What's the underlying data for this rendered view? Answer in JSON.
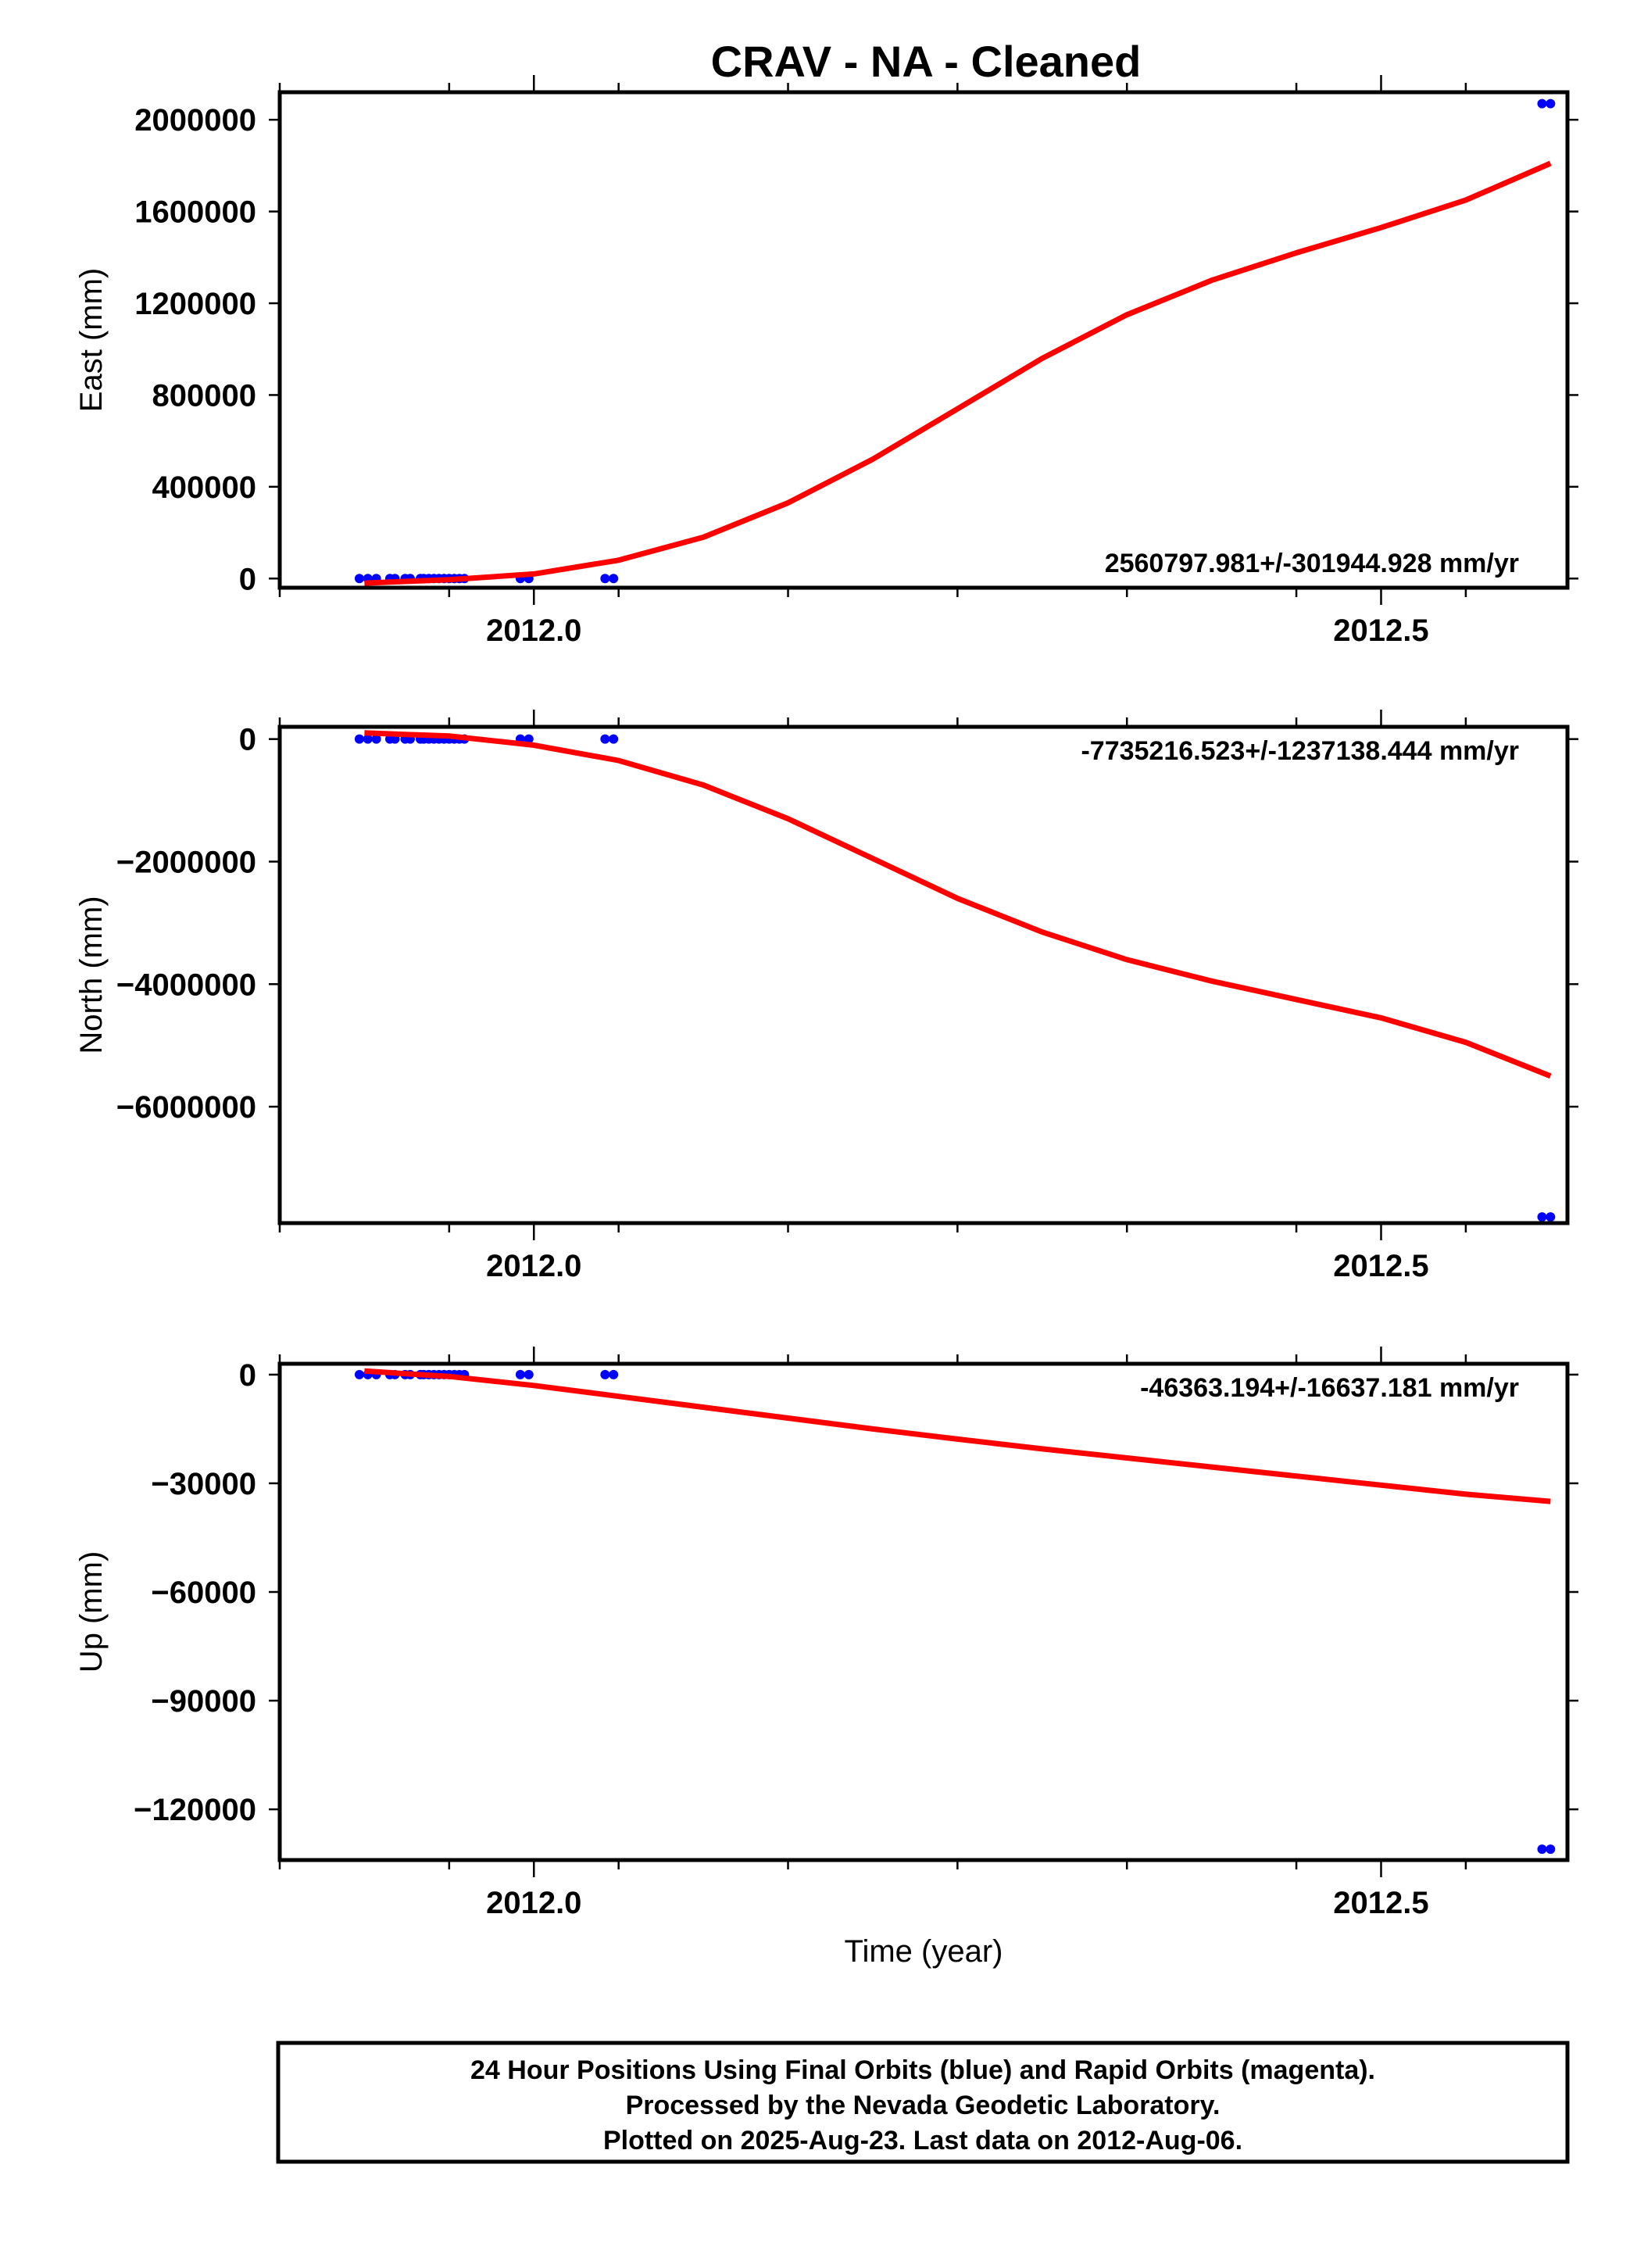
{
  "chart_data": [
    {
      "type": "line",
      "title": "CRAV  - NA - Cleaned",
      "ylabel": "East (mm)",
      "xlabel": "",
      "xlim": [
        2011.85,
        2012.61
      ],
      "ylim": [
        -40000,
        2120000
      ],
      "x_ticks": [
        2012.0,
        2012.5
      ],
      "x_tick_labels": [
        "2012.0",
        "2012.5"
      ],
      "y_ticks": [
        0,
        400000,
        800000,
        1200000,
        1600000,
        2000000
      ],
      "y_tick_labels": [
        "0",
        "400000",
        "800000",
        "1200000",
        "1600000",
        "2000000"
      ],
      "rate_label": "2560797.981+/-301944.928 mm/yr",
      "series": [
        {
          "color": "#0000ff",
          "style": "points",
          "x": [
            2011.897,
            2011.902,
            2011.907,
            2011.915,
            2011.918,
            2011.924,
            2011.927,
            2011.933,
            2011.935,
            2011.938,
            2011.941,
            2011.944,
            2011.947,
            2011.95,
            2011.953,
            2011.956,
            2011.959,
            2011.992,
            2011.997,
            2012.042,
            2012.047,
            2012.595,
            2012.6
          ],
          "y": [
            0,
            0,
            0,
            0,
            0,
            0,
            0,
            0,
            0,
            0,
            0,
            0,
            0,
            0,
            0,
            0,
            0,
            0,
            0,
            0,
            0,
            2070000,
            2070000
          ]
        },
        {
          "color": "#ff0000",
          "style": "line",
          "x": [
            2011.9,
            2011.95,
            2012.0,
            2012.05,
            2012.1,
            2012.15,
            2012.2,
            2012.25,
            2012.3,
            2012.35,
            2012.4,
            2012.45,
            2012.5,
            2012.55,
            2012.6
          ],
          "y": [
            -20000,
            -5000,
            20000,
            80000,
            180000,
            330000,
            520000,
            740000,
            960000,
            1150000,
            1300000,
            1420000,
            1530000,
            1650000,
            1810000
          ]
        }
      ]
    },
    {
      "type": "line",
      "title": "",
      "ylabel": "North (mm)",
      "xlabel": "",
      "xlim": [
        2011.85,
        2012.61
      ],
      "ylim": [
        -7900000,
        200000
      ],
      "x_ticks": [
        2012.0,
        2012.5
      ],
      "x_tick_labels": [
        "2012.0",
        "2012.5"
      ],
      "y_ticks": [
        0,
        -2000000,
        -4000000,
        -6000000
      ],
      "y_tick_labels": [
        "0",
        "−2000000",
        "−4000000",
        "−6000000"
      ],
      "rate_label": "-7735216.523+/-1237138.444 mm/yr",
      "series": [
        {
          "color": "#0000ff",
          "style": "points",
          "x": [
            2011.897,
            2011.902,
            2011.907,
            2011.915,
            2011.918,
            2011.924,
            2011.927,
            2011.933,
            2011.935,
            2011.938,
            2011.941,
            2011.944,
            2011.947,
            2011.95,
            2011.953,
            2011.956,
            2011.959,
            2011.992,
            2011.997,
            2012.042,
            2012.047,
            2012.595,
            2012.6
          ],
          "y": [
            0,
            0,
            0,
            0,
            0,
            0,
            0,
            0,
            0,
            0,
            0,
            0,
            0,
            0,
            0,
            0,
            0,
            0,
            0,
            0,
            0,
            -7800000,
            -7800000
          ]
        },
        {
          "color": "#ff0000",
          "style": "line",
          "x": [
            2011.9,
            2011.95,
            2012.0,
            2012.05,
            2012.1,
            2012.15,
            2012.2,
            2012.25,
            2012.3,
            2012.35,
            2012.4,
            2012.45,
            2012.5,
            2012.55,
            2012.6
          ],
          "y": [
            100000,
            50000,
            -100000,
            -350000,
            -750000,
            -1300000,
            -1950000,
            -2600000,
            -3150000,
            -3600000,
            -3950000,
            -4250000,
            -4550000,
            -4950000,
            -5500000
          ]
        }
      ]
    },
    {
      "type": "line",
      "title": "",
      "ylabel": "Up (mm)",
      "xlabel": "Time (year)",
      "xlim": [
        2011.85,
        2012.61
      ],
      "ylim": [
        -134000,
        3000
      ],
      "x_ticks": [
        2012.0,
        2012.5
      ],
      "x_tick_labels": [
        "2012.0",
        "2012.5"
      ],
      "y_ticks": [
        0,
        -30000,
        -60000,
        -90000,
        -120000
      ],
      "y_tick_labels": [
        "0",
        "−30000",
        "−60000",
        "−90000",
        "−120000"
      ],
      "rate_label": "-46363.194+/-16637.181 mm/yr",
      "series": [
        {
          "color": "#0000ff",
          "style": "points",
          "x": [
            2011.897,
            2011.902,
            2011.907,
            2011.915,
            2011.918,
            2011.924,
            2011.927,
            2011.933,
            2011.935,
            2011.938,
            2011.941,
            2011.944,
            2011.947,
            2011.95,
            2011.953,
            2011.956,
            2011.959,
            2011.992,
            2011.997,
            2012.042,
            2012.047,
            2012.595,
            2012.6
          ],
          "y": [
            0,
            0,
            0,
            0,
            0,
            0,
            0,
            0,
            0,
            0,
            0,
            0,
            0,
            0,
            0,
            0,
            0,
            0,
            0,
            0,
            0,
            -131000,
            -131000
          ]
        },
        {
          "color": "#ff0000",
          "style": "line",
          "x": [
            2011.9,
            2011.95,
            2012.0,
            2012.05,
            2012.1,
            2012.15,
            2012.2,
            2012.25,
            2012.3,
            2012.35,
            2012.4,
            2012.45,
            2012.5,
            2012.55,
            2012.6
          ],
          "y": [
            1000,
            -500,
            -3000,
            -6000,
            -9000,
            -12000,
            -15000,
            -17800,
            -20500,
            -23000,
            -25500,
            -28000,
            -30500,
            -33000,
            -35000
          ]
        }
      ]
    }
  ],
  "footer": {
    "lines": [
      "24 Hour Positions Using Final Orbits (blue) and Rapid Orbits (magenta).",
      "Processed by the Nevada Geodetic Laboratory.",
      "Plotted on 2025-Aug-23. Last data on 2012-Aug-06."
    ]
  }
}
